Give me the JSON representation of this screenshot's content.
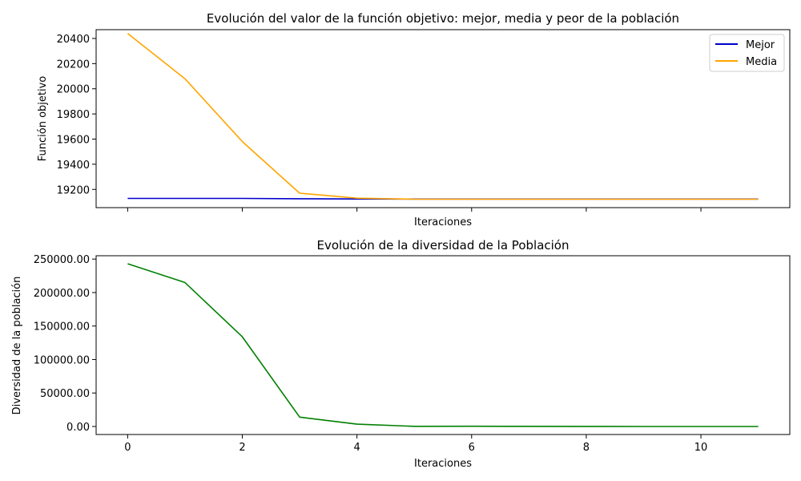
{
  "chart_data": [
    {
      "type": "line",
      "title": "Evolución del valor de la función objetivo: mejor, media y peor de la población",
      "xlabel": "Iteraciones",
      "ylabel": "Función objetivo",
      "x": [
        0,
        1,
        2,
        3,
        4,
        5,
        6,
        7,
        8,
        9,
        10,
        11
      ],
      "xlim": [
        -0.55,
        11.55
      ],
      "ylim": [
        19055,
        20470
      ],
      "yticks": [
        19200,
        19400,
        19600,
        19800,
        20000,
        20200,
        20400
      ],
      "xticks": [
        0,
        2,
        4,
        6,
        8,
        10
      ],
      "x_tick_labels_shown": false,
      "grid": false,
      "legend": "top-right",
      "series": [
        {
          "name": "Mejor",
          "color": "#0000cc",
          "values": [
            19128,
            19128,
            19128,
            19126,
            19124,
            19123,
            19123,
            19123,
            19123,
            19123,
            19123,
            19123
          ]
        },
        {
          "name": "Media",
          "color": "#ffa500",
          "values": [
            20440,
            20080,
            19580,
            19170,
            19130,
            19122,
            19122,
            19122,
            19122,
            19122,
            19122,
            19122
          ]
        }
      ]
    },
    {
      "type": "line",
      "title": "Evolución de la diversidad de la Población",
      "xlabel": "Iteraciones",
      "ylabel": "Diversidad de la población",
      "x": [
        0,
        1,
        2,
        3,
        4,
        5,
        6,
        7,
        8,
        9,
        10,
        11
      ],
      "xlim": [
        -0.55,
        11.55
      ],
      "ylim": [
        -12000,
        255000
      ],
      "yticks": [
        0,
        50000,
        100000,
        150000,
        200000,
        250000
      ],
      "ytick_labels": [
        "0.00",
        "50000.00",
        "100000.00",
        "150000.00",
        "200000.00",
        "250000.00"
      ],
      "xticks": [
        0,
        2,
        4,
        6,
        8,
        10
      ],
      "grid": false,
      "series": [
        {
          "color": "#008000",
          "values": [
            243000,
            215000,
            134000,
            14000,
            3500,
            200,
            300,
            200,
            100,
            0,
            0,
            0
          ]
        }
      ]
    }
  ]
}
